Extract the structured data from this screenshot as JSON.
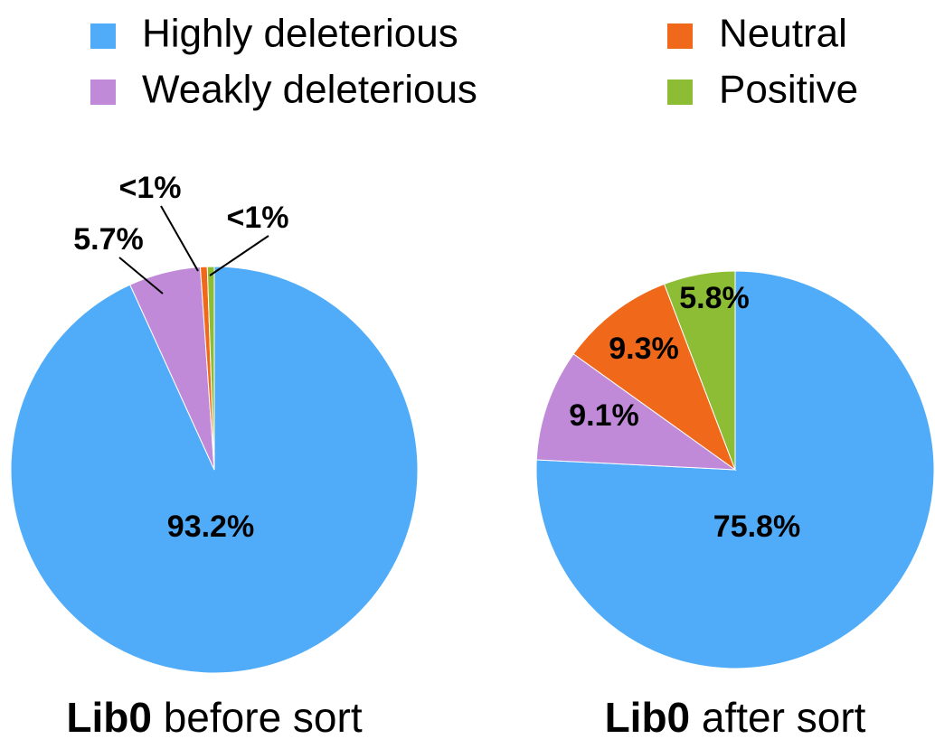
{
  "chart_data": [
    {
      "type": "pie",
      "dataset": "Lib0",
      "title": "before sort",
      "categories": [
        "Highly deleterious",
        "Weakly deleterious",
        "Neutral",
        "Positive"
      ],
      "values": [
        93.2,
        5.7,
        0.55,
        0.55
      ],
      "value_labels": [
        "93.2%",
        "5.7%",
        "<1%",
        "<1%"
      ],
      "colors": [
        "#50acf8",
        "#c08ad8",
        "#f0691a",
        "#8cbd34"
      ]
    },
    {
      "type": "pie",
      "dataset": "Lib0",
      "title": "after sort",
      "categories": [
        "Highly deleterious",
        "Weakly deleterious",
        "Neutral",
        "Positive"
      ],
      "values": [
        75.8,
        9.1,
        9.3,
        5.8
      ],
      "value_labels": [
        "75.8%",
        "9.1%",
        "9.3%",
        "5.8%"
      ],
      "colors": [
        "#50acf8",
        "#c08ad8",
        "#f0691a",
        "#8cbd34"
      ]
    }
  ]
}
